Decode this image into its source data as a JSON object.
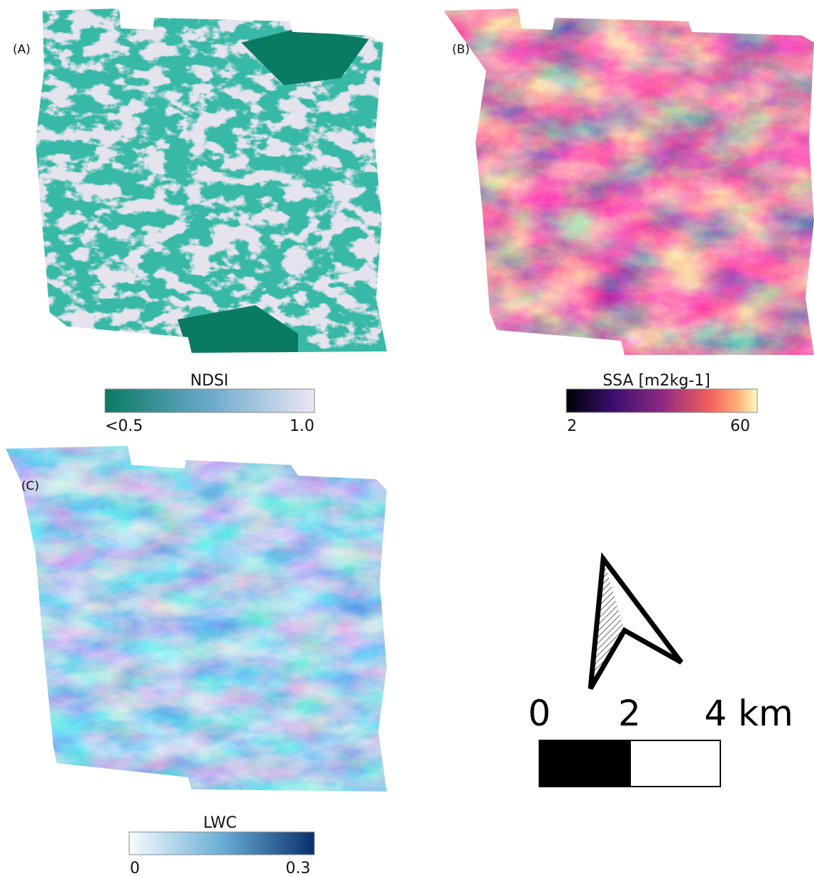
{
  "panels": [
    {
      "label": "(A)",
      "colorbar": {
        "title": "NDSI",
        "ticks": [
          "<0.5",
          "1.0"
        ]
      }
    },
    {
      "label": "(B)",
      "colorbar": {
        "title": "SSA [m2kg-1]",
        "ticks": [
          "2",
          "60"
        ]
      }
    },
    {
      "label": "(C)",
      "colorbar": {
        "title": "LWC",
        "ticks": [
          "0",
          "0.3"
        ]
      }
    }
  ],
  "scale_bar": {
    "ticks": [
      "0",
      "2",
      "4 km"
    ]
  }
}
